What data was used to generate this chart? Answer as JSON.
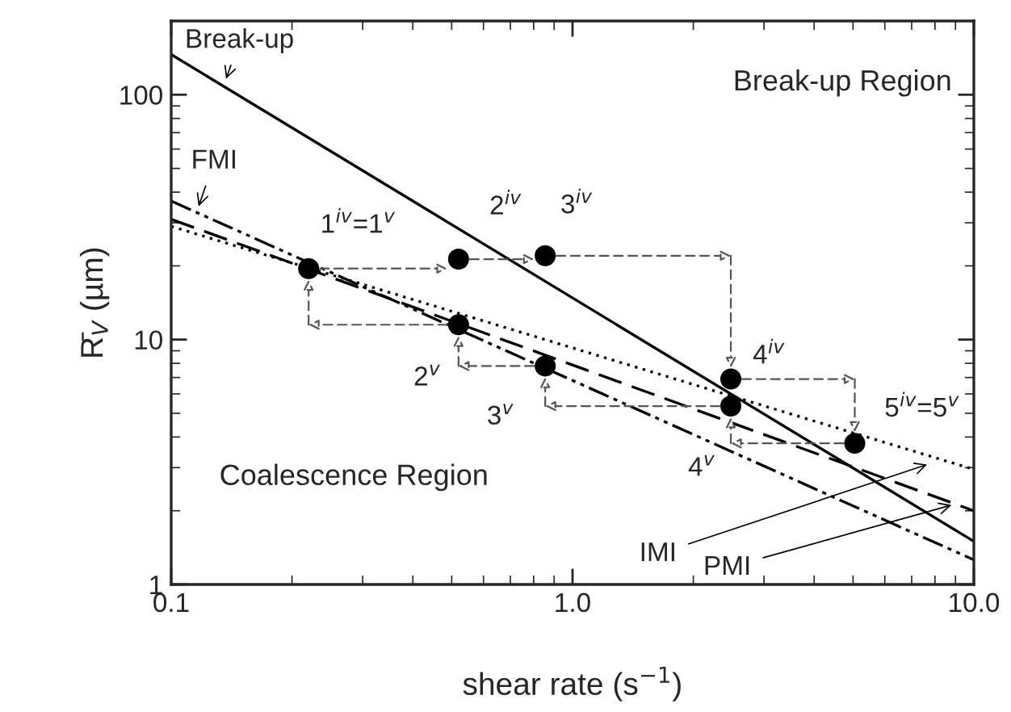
{
  "chart_data": {
    "type": "line",
    "xlabel": "shear rate (s$^{−1}$)",
    "ylabel": "R̄$_{V}$ (µm)",
    "log": "xy",
    "xlim": [
      0.1,
      10
    ],
    "ylim": [
      1,
      200
    ],
    "xticks": [
      {
        "value": 0.1,
        "label": "0.1"
      },
      {
        "value": 1,
        "label": "1.0"
      },
      {
        "value": 10,
        "label": "10.0"
      }
    ],
    "yticks": [
      1,
      10,
      100
    ],
    "grid": false,
    "series": [
      {
        "color": "#000000",
        "line_style": "solid",
        "x": [
          0.1,
          10
        ],
        "values": [
          146,
          1.5
        ]
      },
      {
        "color": "#000000",
        "line_style": "dashdot",
        "x": [
          0.1,
          10
        ],
        "values": [
          36.8,
          1.26
        ]
      },
      {
        "color": "#000000",
        "line_style": "dotted",
        "x": [
          0.1,
          10
        ],
        "values": [
          29,
          2.95
        ]
      },
      {
        "color": "#000000",
        "line_style": "dashed",
        "x": [
          0.1,
          10
        ],
        "values": [
          31,
          2.0
        ]
      },
      {
        "type": "scatter",
        "color": "#000000",
        "marker": "circle",
        "x": [
          0.22,
          0.52,
          0.52,
          0.855,
          0.855,
          2.48,
          2.48,
          5.05
        ],
        "values": [
          19.5,
          21.3,
          11.5,
          22,
          7.8,
          6.9,
          5.35,
          3.77
        ]
      }
    ],
    "annotations": [
      "Break-up Region",
      "Coalescence Region",
      {
        "text": "Break-up",
        "x": 0.137,
        "y": 116
      },
      {
        "text": "FMI",
        "x": 0.117,
        "y": 35
      },
      {
        "text": "IMI",
        "x": 7.65,
        "y": 3.09
      },
      {
        "text": "PMI",
        "x": 8.8,
        "y": 2.11
      },
      {
        "text": "1$^{iv}$=1$^{v}$",
        "x": 0.22,
        "y": 19.5
      },
      {
        "text": "2$^{iv}$",
        "x": 0.52,
        "y": 21.3
      },
      {
        "text": "2$^{v}$",
        "x": 0.52,
        "y": 11.5
      },
      {
        "text": "3$^{iv}$",
        "x": 0.855,
        "y": 22
      },
      {
        "text": "3$^{v}$",
        "x": 0.855,
        "y": 7.8
      },
      {
        "text": "4$^{iv}$",
        "x": 2.48,
        "y": 6.9
      },
      {
        "text": "4$^{v}$",
        "x": 2.48,
        "y": 5.35
      },
      {
        "text": "5$^{iv}$=5$^{v}$",
        "x": 5.05,
        "y": 3.77
      }
    ]
  }
}
